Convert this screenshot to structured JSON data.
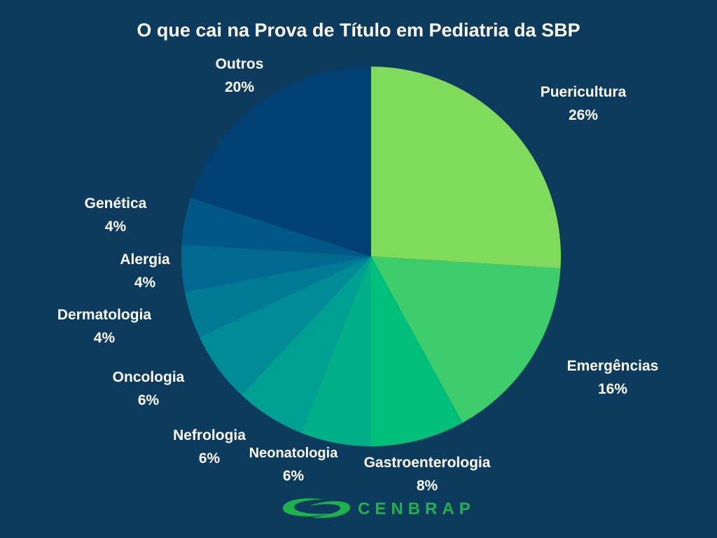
{
  "chart_data": {
    "type": "pie",
    "title": "O que cai na Prova de Título em Pediatria da SBP",
    "start": "12 o'clock",
    "direction": "clockwise",
    "slices": [
      {
        "label": "Puericultura",
        "value": 26,
        "value_label": "26%",
        "color": "#80da5b"
      },
      {
        "label": "Emergências",
        "value": 16,
        "value_label": "16%",
        "color": "#3ecd6d"
      },
      {
        "label": "Gastroenterologia",
        "value": 8,
        "value_label": "8%",
        "color": "#00bf7a"
      },
      {
        "label": "Neonatologia",
        "value": 6,
        "value_label": "6%",
        "color": "#00ae87"
      },
      {
        "label": "Nefrologia",
        "value": 6,
        "value_label": "6%",
        "color": "#009f93"
      },
      {
        "label": "Oncologia",
        "value": 6,
        "value_label": "6%",
        "color": "#008b96"
      },
      {
        "label": "Dermatologia",
        "value": 4,
        "value_label": "4%",
        "color": "#007a95"
      },
      {
        "label": "Alergia",
        "value": 4,
        "value_label": "4%",
        "color": "#006891"
      },
      {
        "label": "Genética",
        "value": 4,
        "value_label": "4%",
        "color": "#015787"
      },
      {
        "label": "Outros",
        "value": 20,
        "value_label": "20%",
        "color": "#023f73"
      }
    ]
  },
  "logo": {
    "text": "CENBRAP",
    "color": "#1db34b"
  },
  "colors": {
    "background": "#0d3b5e",
    "text": "#ffffff"
  }
}
